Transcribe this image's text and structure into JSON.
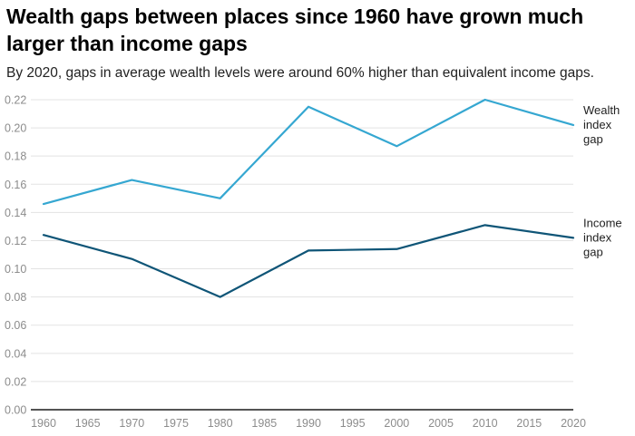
{
  "header": {
    "title": "Wealth gaps between places since 1960 have grown much larger than income gaps",
    "subtitle": "By 2020, gaps in average wealth levels were around 60% higher than equivalent income gaps."
  },
  "chart_data": {
    "type": "line",
    "x": [
      1960,
      1970,
      1980,
      1990,
      2000,
      2010,
      2020
    ],
    "xticks": [
      "1960",
      "1965",
      "1970",
      "1975",
      "1980",
      "1985",
      "1990",
      "1995",
      "2000",
      "2005",
      "2010",
      "2015",
      "2020"
    ],
    "yticks": [
      "0.00",
      "0.02",
      "0.04",
      "0.06",
      "0.08",
      "0.10",
      "0.12",
      "0.14",
      "0.16",
      "0.18",
      "0.20",
      "0.22"
    ],
    "xlim": [
      1960,
      2020
    ],
    "ylim": [
      0,
      0.22
    ],
    "grid": "horizontal",
    "series": [
      {
        "name": "Wealth index gap",
        "label_lines": [
          "Wealth",
          "index",
          "gap"
        ],
        "color": "#35a7d1",
        "values": [
          0.146,
          0.163,
          0.15,
          0.215,
          0.187,
          0.22,
          0.202
        ]
      },
      {
        "name": "Income index gap",
        "label_lines": [
          "Income",
          "index",
          "gap"
        ],
        "color": "#0f5577",
        "values": [
          0.124,
          0.107,
          0.08,
          0.113,
          0.114,
          0.131,
          0.122
        ]
      }
    ]
  }
}
